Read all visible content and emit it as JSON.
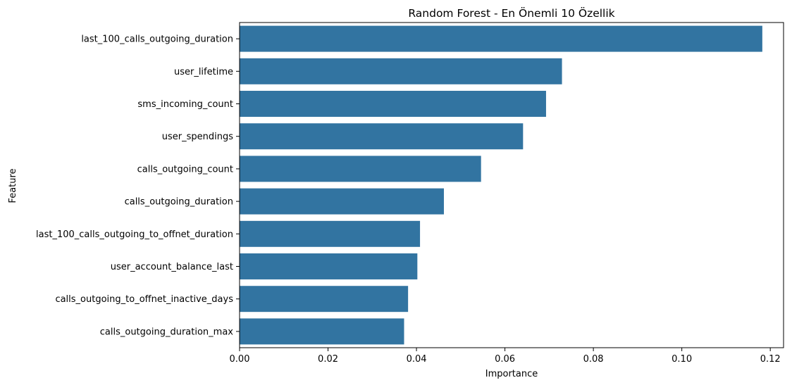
{
  "chart_data": {
    "type": "bar",
    "orientation": "horizontal",
    "title": "Random Forest - En Önemli 10 Özellik",
    "xlabel": "Importance",
    "ylabel": "Feature",
    "xlim": [
      0,
      0.123
    ],
    "xticks": [
      "0.00",
      "0.02",
      "0.04",
      "0.06",
      "0.08",
      "0.10",
      "0.12"
    ],
    "xtick_values": [
      0,
      0.02,
      0.04,
      0.06,
      0.08,
      0.1,
      0.12
    ],
    "grid": false,
    "bar_color": "#3274a1",
    "categories": [
      "last_100_calls_outgoing_duration",
      "user_lifetime",
      "sms_incoming_count",
      "user_spendings",
      "calls_outgoing_count",
      "calls_outgoing_duration",
      "last_100_calls_outgoing_to_offnet_duration",
      "user_account_balance_last",
      "calls_outgoing_to_offnet_inactive_days",
      "calls_outgoing_duration_max"
    ],
    "values": [
      0.1182,
      0.0729,
      0.0693,
      0.0641,
      0.0546,
      0.0462,
      0.0408,
      0.0402,
      0.0381,
      0.0372
    ]
  }
}
